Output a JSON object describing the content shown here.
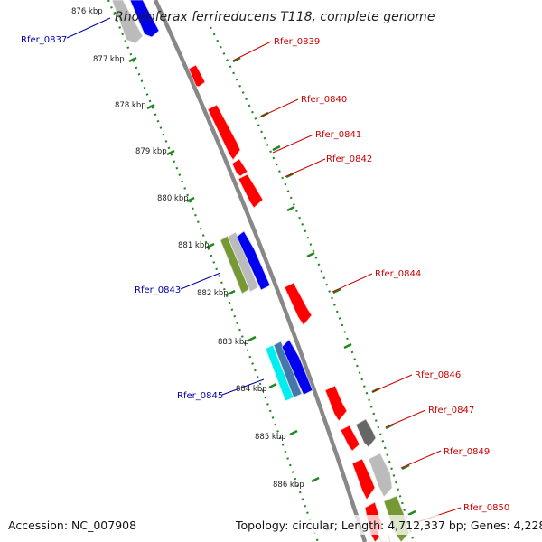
{
  "title": "Rhodoferax ferrireducens T118, complete genome",
  "colors": {
    "forward_gene": "#ff0000",
    "reverse_gene": "#0000ee",
    "backbone": "#888888",
    "tick_dots": "#228822",
    "gray_gene": "#bbbbbb",
    "dark_gray_gene": "#666666",
    "olive_gene": "#779933",
    "cyan_gene": "#00eeee",
    "steel_gene": "#4477aa",
    "label_forward": "#cc0000",
    "label_reverse": "#0000aa"
  },
  "scale_labels": [
    "876 kbp",
    "877 kbp",
    "878 kbp",
    "879 kbp",
    "880 kbp",
    "881 kbp",
    "882 kbp",
    "883 kbp",
    "884 kbp",
    "885 kbp",
    "886 kbp"
  ],
  "gene_labels": {
    "forward": [
      "Rfer_0839",
      "Rfer_0840",
      "Rfer_0841",
      "Rfer_0842",
      "Rfer_0844",
      "Rfer_0846",
      "Rfer_0847",
      "Rfer_0849",
      "Rfer_0850"
    ],
    "reverse": [
      "Rfer_0837",
      "Rfer_0843",
      "Rfer_0845"
    ]
  },
  "footer": {
    "accession": "Accession: NC_007908",
    "topology": "Topology: circular; Length: 4,712,337 bp; Genes: 4,228"
  }
}
